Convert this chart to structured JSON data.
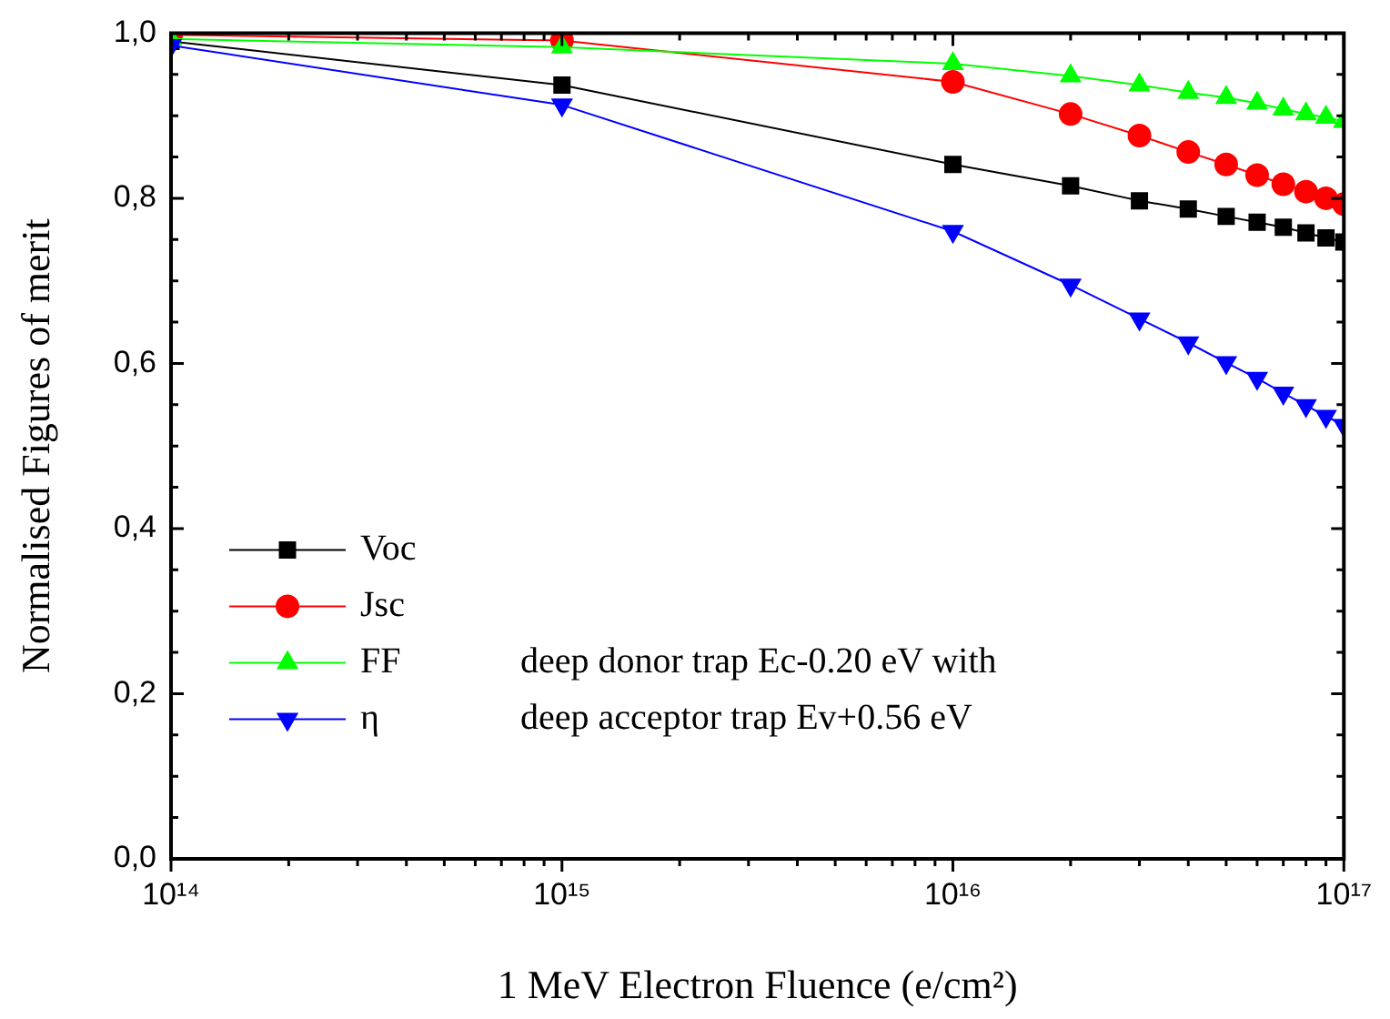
{
  "chart_data": {
    "type": "line",
    "xlabel": "1 MeV Electron Fluence (e/cm²)",
    "ylabel": "Normalised Figures of merit",
    "x": [
      100000000000000.0,
      1000000000000000.0,
      1e+16,
      2e+16,
      3e+16,
      4e+16,
      5e+16,
      6e+16,
      7e+16,
      8e+16,
      9e+16,
      1e+17
    ],
    "series": [
      {
        "name": "Voc",
        "color": "#000000",
        "marker": "square",
        "values": [
          0.99,
          0.937,
          0.841,
          0.815,
          0.797,
          0.787,
          0.778,
          0.771,
          0.765,
          0.758,
          0.752,
          0.747
        ]
      },
      {
        "name": "Jsc",
        "color": "#ff0000",
        "marker": "circle",
        "values": [
          0.998,
          0.991,
          0.941,
          0.902,
          0.876,
          0.856,
          0.841,
          0.828,
          0.817,
          0.808,
          0.8,
          0.793
        ]
      },
      {
        "name": "FF",
        "color": "#00ff00",
        "marker": "triangle",
        "values": [
          0.993,
          0.983,
          0.963,
          0.948,
          0.937,
          0.928,
          0.922,
          0.915,
          0.908,
          0.902,
          0.898,
          0.893
        ]
      },
      {
        "name": "η",
        "color": "#0000ff",
        "marker": "triangle-down",
        "values": [
          0.985,
          0.913,
          0.76,
          0.695,
          0.654,
          0.625,
          0.601,
          0.582,
          0.564,
          0.549,
          0.536,
          0.525
        ]
      }
    ],
    "log": "x",
    "xlim": [
      100000000000000.0,
      1e+17
    ],
    "xticks": [
      {
        "value": 100000000000000.0,
        "label": "10¹⁴"
      },
      {
        "value": 1000000000000000.0,
        "label": "10¹⁵"
      },
      {
        "value": 1e+16,
        "label": "10¹⁶"
      },
      {
        "value": 1e+17,
        "label": "10¹⁷"
      }
    ],
    "ylim": [
      0,
      1
    ],
    "yticks": [
      {
        "value": 0,
        "label": "0,0"
      },
      {
        "value": 0.2,
        "label": "0,2"
      },
      {
        "value": 0.4,
        "label": "0,4"
      },
      {
        "value": 0.6,
        "label": "0,6"
      },
      {
        "value": 0.8,
        "label": "0,8"
      },
      {
        "value": 1,
        "label": "1,0"
      }
    ],
    "grid": false,
    "legend": "bottom left",
    "line_style": "solid",
    "annotations": [
      "deep donor trap Ec-0.20 eV with",
      "deep acceptor trap Ev+0.56 eV"
    ]
  }
}
